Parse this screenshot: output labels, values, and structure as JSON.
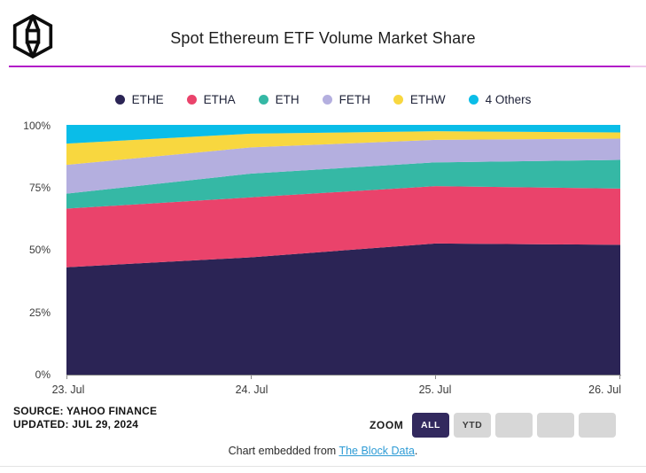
{
  "header": {
    "title": "Spot Ethereum ETF Volume Market Share"
  },
  "chart_data": {
    "type": "area",
    "stacked": true,
    "x": [
      "23. Jul",
      "24. Jul",
      "25. Jul",
      "26. Jul"
    ],
    "series": [
      {
        "name": "ETHE",
        "color": "#2b2455",
        "values": [
          43.0,
          47.0,
          52.5,
          52.0
        ]
      },
      {
        "name": "ETHA",
        "color": "#ea436b",
        "values": [
          23.5,
          24.0,
          23.0,
          22.5
        ]
      },
      {
        "name": "ETH",
        "color": "#35b8a5",
        "values": [
          6.0,
          9.5,
          9.5,
          11.5
        ]
      },
      {
        "name": "FETH",
        "color": "#b4afdf",
        "values": [
          11.5,
          10.5,
          9.0,
          8.5
        ]
      },
      {
        "name": "ETHW",
        "color": "#f8d73f",
        "values": [
          8.5,
          5.5,
          3.5,
          2.5
        ]
      },
      {
        "name": "4 Others",
        "color": "#0abde8",
        "values": [
          7.5,
          3.5,
          2.5,
          3.0
        ]
      }
    ],
    "ylim": [
      0,
      100
    ],
    "yticks": [
      "100%",
      "75%",
      "50%",
      "25%",
      "0%"
    ],
    "legend_position": "top",
    "grid": false
  },
  "source": {
    "line1": "SOURCE: YAHOO FINANCE",
    "line2": "UPDATED: JUL 29, 2024"
  },
  "zoom_controls": {
    "label": "ZOOM",
    "buttons": [
      {
        "label": "ALL",
        "active": true
      },
      {
        "label": "YTD",
        "active": false
      },
      {
        "label": "",
        "active": false
      },
      {
        "label": "",
        "active": false
      },
      {
        "label": "",
        "active": false
      }
    ]
  },
  "footer": {
    "prefix": "Chart embedded from ",
    "link": "The Block Data",
    "suffix": "."
  },
  "colors": {
    "divider": "#b21cc8",
    "divider_light": "#eec9ec",
    "active_button": "#32295e",
    "link": "#2d9bd5"
  }
}
